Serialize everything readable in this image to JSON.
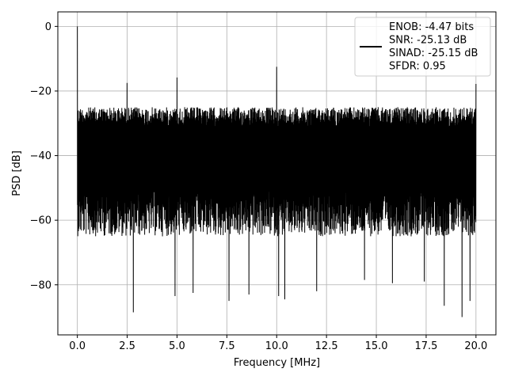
{
  "chart_data": {
    "type": "line",
    "title": "",
    "xlabel": "Frequency [MHz]",
    "ylabel": "PSD [dB]",
    "xlim": [
      -0.98,
      21.0
    ],
    "ylim": [
      -95.5,
      4.5
    ],
    "xticks": [
      0.0,
      2.5,
      5.0,
      7.5,
      10.0,
      12.5,
      15.0,
      17.5,
      20.0
    ],
    "xtick_labels": [
      "0.0",
      "2.5",
      "5.0",
      "7.5",
      "10.0",
      "12.5",
      "15.0",
      "17.5",
      "20.0"
    ],
    "yticks": [
      0,
      -20,
      -40,
      -60,
      -80
    ],
    "ytick_labels": [
      "0",
      "−20",
      "−40",
      "−60",
      "−80"
    ],
    "grid": true,
    "legend_position": "top-right",
    "series": [
      {
        "legend_lines": [
          "ENOB: -4.47 bits",
          "SNR: -25.13 dB",
          "SINAD: -25.15 dB",
          "SFDR: 0.95"
        ],
        "color": "#000000",
        "x_range": [
          0.0,
          20.0
        ],
        "noise_floor_top": -23,
        "noise_floor_typical_low": -65,
        "peaks": [
          {
            "x": 0.0,
            "y": 0.0
          },
          {
            "x": 2.5,
            "y": -17.5
          },
          {
            "x": 5.0,
            "y": -15.8
          },
          {
            "x": 10.0,
            "y": -12.5
          },
          {
            "x": 20.0,
            "y": -17.8
          }
        ],
        "dips": [
          {
            "x": 2.8,
            "y": -88.5
          },
          {
            "x": 4.9,
            "y": -83.5
          },
          {
            "x": 5.8,
            "y": -82.5
          },
          {
            "x": 7.6,
            "y": -85.0
          },
          {
            "x": 8.6,
            "y": -83.0
          },
          {
            "x": 10.1,
            "y": -83.5
          },
          {
            "x": 10.4,
            "y": -84.5
          },
          {
            "x": 12.0,
            "y": -82.0
          },
          {
            "x": 14.4,
            "y": -78.5
          },
          {
            "x": 15.8,
            "y": -79.5
          },
          {
            "x": 17.4,
            "y": -79.0
          },
          {
            "x": 18.4,
            "y": -86.5
          },
          {
            "x": 19.3,
            "y": -90.0
          },
          {
            "x": 19.7,
            "y": -85.0
          }
        ]
      }
    ]
  }
}
